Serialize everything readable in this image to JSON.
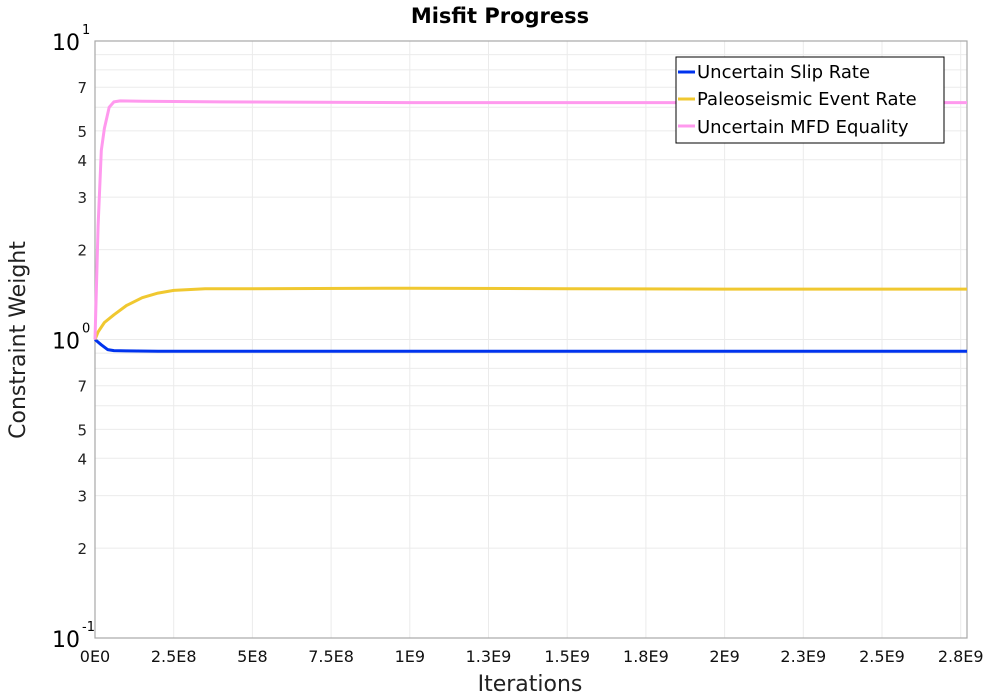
{
  "chart_data": {
    "type": "line",
    "title": "Misfit Progress",
    "xlabel": "Iterations",
    "ylabel": "Constraint Weight",
    "xlim": [
      0,
      2770000000
    ],
    "ylim": [
      0.1,
      10
    ],
    "yscale": "log",
    "grid": true,
    "legend_position": "top-right",
    "x_ticks": [
      {
        "value": 0,
        "label": "0E0"
      },
      {
        "value": 250000000,
        "label": "2.5E8"
      },
      {
        "value": 500000000,
        "label": "5E8"
      },
      {
        "value": 750000000,
        "label": "7.5E8"
      },
      {
        "value": 1000000000,
        "label": "1E9"
      },
      {
        "value": 1250000000,
        "label": "1.3E9"
      },
      {
        "value": 1500000000,
        "label": "1.5E9"
      },
      {
        "value": 1750000000,
        "label": "1.8E9"
      },
      {
        "value": 2000000000,
        "label": "2E9"
      },
      {
        "value": 2250000000,
        "label": "2.3E9"
      },
      {
        "value": 2500000000,
        "label": "2.5E9"
      },
      {
        "value": 2750000000,
        "label": "2.8E9"
      }
    ],
    "y_major_ticks": [
      {
        "value": 0.1,
        "base": "10",
        "exp": "-1"
      },
      {
        "value": 1,
        "base": "10",
        "exp": "0"
      },
      {
        "value": 10,
        "base": "10",
        "exp": "1"
      }
    ],
    "y_minor_ticks": [
      {
        "value": 0.2,
        "label": "2"
      },
      {
        "value": 0.3,
        "label": "3"
      },
      {
        "value": 0.4,
        "label": "4"
      },
      {
        "value": 0.5,
        "label": "5"
      },
      {
        "value": 0.7,
        "label": "7"
      },
      {
        "value": 2,
        "label": "2"
      },
      {
        "value": 3,
        "label": "3"
      },
      {
        "value": 4,
        "label": "4"
      },
      {
        "value": 5,
        "label": "5"
      },
      {
        "value": 7,
        "label": "7"
      }
    ],
    "y_minor_grid": [
      0.2,
      0.3,
      0.4,
      0.5,
      0.6,
      0.7,
      0.8,
      0.9,
      2,
      3,
      4,
      5,
      6,
      7,
      8,
      9
    ],
    "series": [
      {
        "name": "Uncertain Slip Rate",
        "color": "#0033ee",
        "x": [
          0,
          20000000,
          40000000,
          60000000,
          100000000,
          200000000,
          400000000,
          1000000000,
          2000000000,
          2770000000
        ],
        "values": [
          1.0,
          0.96,
          0.925,
          0.918,
          0.916,
          0.914,
          0.913,
          0.913,
          0.913,
          0.913
        ]
      },
      {
        "name": "Paleoseismic Event Rate",
        "color": "#f0c830",
        "x": [
          0,
          10000000,
          30000000,
          60000000,
          100000000,
          150000000,
          200000000,
          250000000,
          350000000,
          500000000,
          1000000000,
          1500000000,
          2000000000,
          2770000000
        ],
        "values": [
          1.0,
          1.06,
          1.14,
          1.21,
          1.3,
          1.38,
          1.43,
          1.46,
          1.48,
          1.48,
          1.485,
          1.48,
          1.475,
          1.475
        ]
      },
      {
        "name": "Uncertain MFD Equality",
        "color": "#ff99ee",
        "x": [
          0,
          10000000,
          20000000,
          30000000,
          45000000,
          60000000,
          80000000,
          150000000,
          400000000,
          1000000000,
          2000000000,
          2770000000
        ],
        "values": [
          1.0,
          2.4,
          4.3,
          5.1,
          6.0,
          6.25,
          6.3,
          6.28,
          6.25,
          6.22,
          6.22,
          6.22
        ]
      }
    ]
  },
  "legend": {
    "items": [
      {
        "label": "Uncertain Slip Rate",
        "color": "#0033ee"
      },
      {
        "label": "Paleoseismic Event Rate",
        "color": "#f0c830"
      },
      {
        "label": "Uncertain MFD Equality",
        "color": "#ff99ee"
      }
    ]
  },
  "colors": {
    "grid": "#ebebeb",
    "frame": "#a8a8a8",
    "background": "#ffffff"
  }
}
